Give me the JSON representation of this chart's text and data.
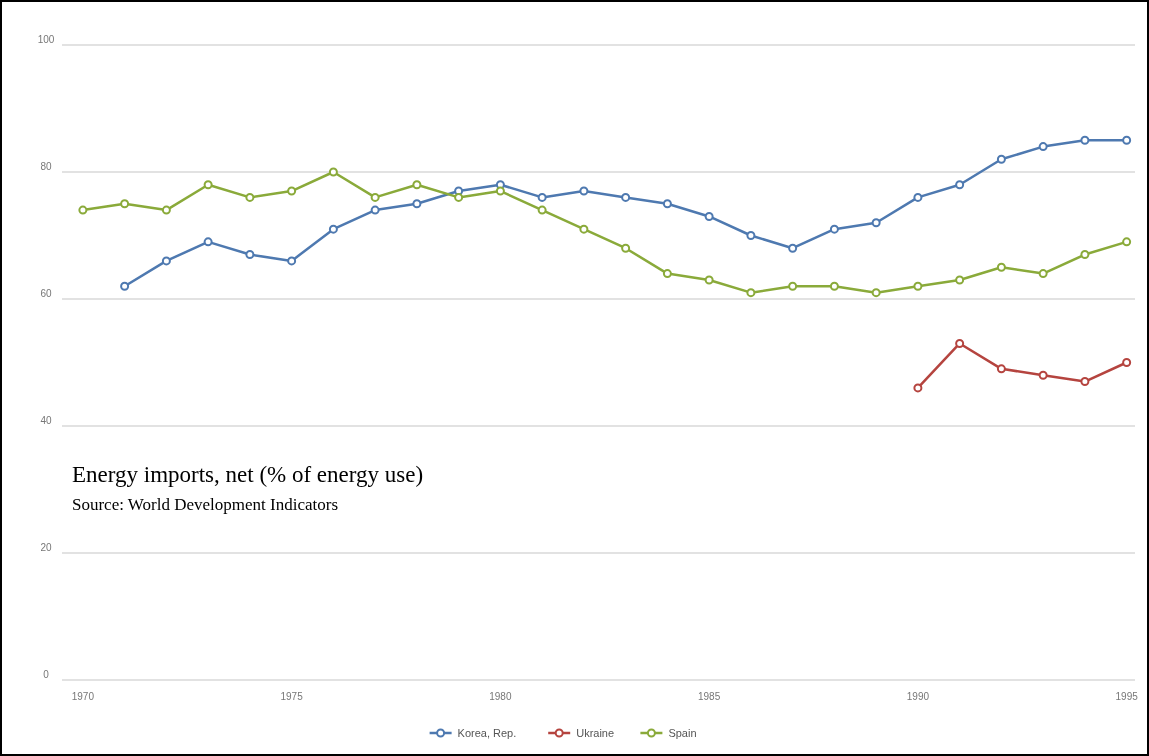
{
  "chart_data": {
    "type": "line",
    "title": "Energy imports, net (% of energy use)",
    "annotations": [
      "Source: World Development Indicators"
    ],
    "x": [
      1970,
      1971,
      1972,
      1973,
      1974,
      1975,
      1976,
      1977,
      1978,
      1979,
      1980,
      1981,
      1982,
      1983,
      1984,
      1985,
      1986,
      1987,
      1988,
      1989,
      1990,
      1991,
      1992,
      1993,
      1994,
      1995
    ],
    "series": [
      {
        "name": "Korea, Rep.",
        "color": "#4e79b0",
        "values": [
          null,
          62,
          66,
          69,
          67,
          66,
          71,
          74,
          75,
          77,
          78,
          76,
          77,
          76,
          75,
          73,
          70,
          68,
          71,
          72,
          76,
          78,
          82,
          84,
          85,
          85
        ]
      },
      {
        "name": "Ukraine",
        "color": "#b5443f",
        "values": [
          null,
          null,
          null,
          null,
          null,
          null,
          null,
          null,
          null,
          null,
          null,
          null,
          null,
          null,
          null,
          null,
          null,
          null,
          null,
          null,
          46,
          53,
          49,
          48,
          47,
          50
        ]
      },
      {
        "name": "Spain",
        "color": "#8aaa3a",
        "values": [
          74,
          75,
          74,
          78,
          76,
          77,
          80,
          76,
          78,
          76,
          77,
          74,
          71,
          68,
          64,
          63,
          61,
          62,
          62,
          61,
          62,
          63,
          65,
          64,
          67,
          69
        ]
      }
    ],
    "xlim": [
      1969.5,
      1995.2
    ],
    "xticks": [
      1970,
      1975,
      1980,
      1985,
      1990,
      1995
    ],
    "ylim": [
      0,
      100
    ],
    "yticks": [
      0,
      20,
      40,
      60,
      80,
      100
    ],
    "grid": "y",
    "legend": "bottom",
    "marker": "circle",
    "line_style": "solid"
  }
}
